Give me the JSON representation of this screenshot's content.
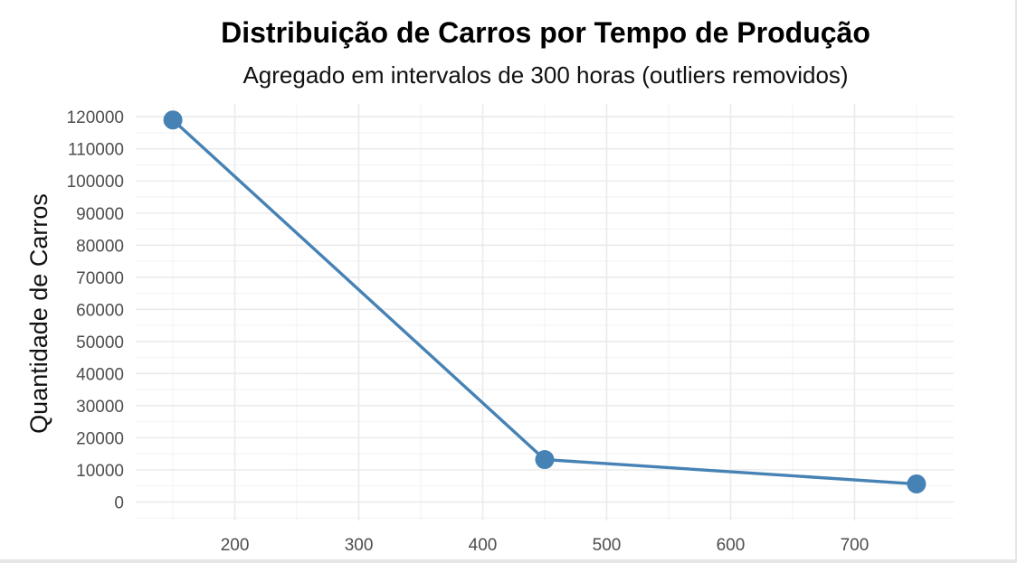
{
  "chart_data": {
    "type": "line",
    "title": "Distribuição de Carros por Tempo de Produção",
    "subtitle": "Agregado em intervalos de 300 horas (outliers removidos)",
    "xlabel": "",
    "ylabel": "Quantidade de Carros",
    "x_ticks": [
      200,
      300,
      400,
      500,
      600,
      700
    ],
    "y_ticks": [
      0,
      10000,
      20000,
      30000,
      40000,
      50000,
      60000,
      70000,
      80000,
      90000,
      100000,
      110000,
      120000
    ],
    "xlim": [
      120,
      780
    ],
    "ylim": [
      -5800,
      124000
    ],
    "grid": true,
    "series": [
      {
        "x": [
          150,
          450,
          750
        ],
        "values": [
          119000,
          13200,
          5600
        ],
        "color": "#4682B4"
      }
    ]
  }
}
